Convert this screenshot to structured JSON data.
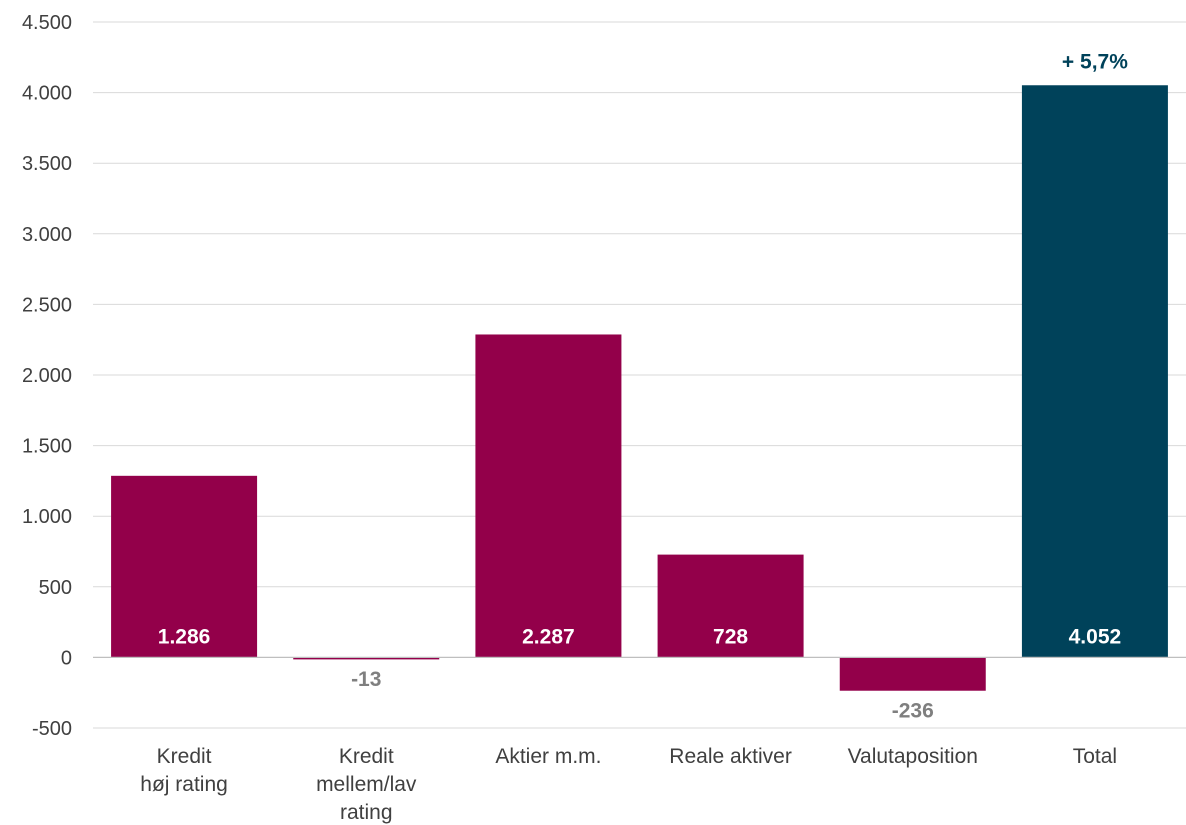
{
  "chart_data": {
    "type": "bar",
    "categories": [
      [
        "Kredit",
        "høj rating"
      ],
      [
        "Kredit",
        "mellem/lav",
        "rating"
      ],
      [
        "Aktier m.m."
      ],
      [
        "Reale aktiver"
      ],
      [
        "Valutaposition"
      ],
      [
        "Total"
      ]
    ],
    "values": [
      1286,
      -13,
      2287,
      728,
      -236,
      4052
    ],
    "value_labels": [
      "1.286",
      "-13",
      "2.287",
      "728",
      "-236",
      "4.052"
    ],
    "ylim": [
      -500,
      4500
    ],
    "yticks": [
      4500,
      4000,
      3500,
      3000,
      2500,
      2000,
      1500,
      1000,
      500,
      0,
      -500
    ],
    "ytick_labels": [
      "4.500",
      "4.000",
      "3.500",
      "3.000",
      "2.500",
      "2.000",
      "1.500",
      "1.000",
      "500",
      "0",
      "-500"
    ],
    "grid": true,
    "annotation": {
      "category_index": 5,
      "text": "+ 5,7%"
    },
    "colors": {
      "bar": "#93004A",
      "total_bar": "#00425A",
      "label_inside": "#ffffff",
      "label_outside": "#7F7F7F",
      "annotation": "#00425A",
      "grid": "#D9D9D9",
      "axis": "#BFBFBF"
    }
  }
}
